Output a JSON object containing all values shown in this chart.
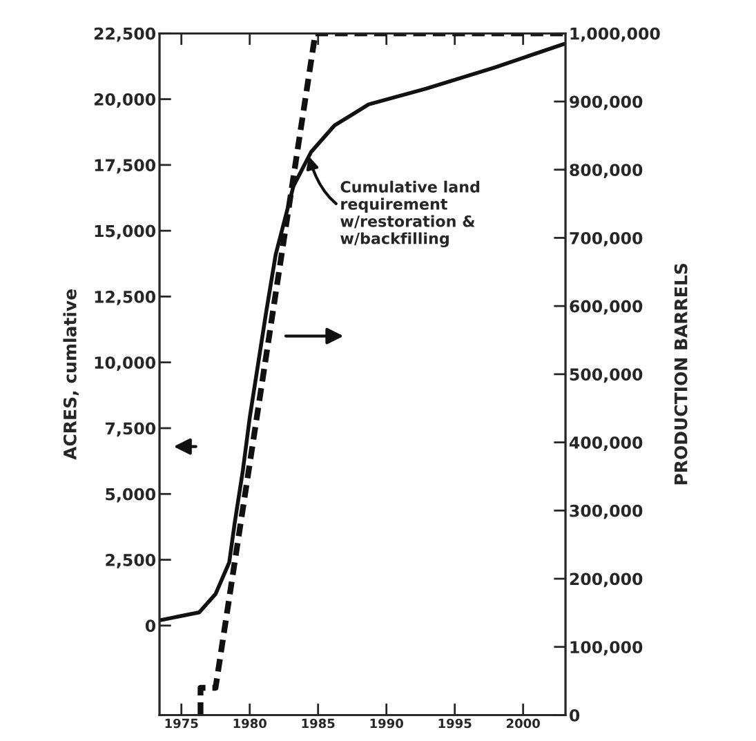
{
  "chart_data": {
    "type": "line",
    "ylabel": "ACRES, cumlative",
    "y2label": "PRODUCTION BARRELS",
    "xlim": [
      1973.4,
      2003.1
    ],
    "xticks": [
      1975,
      1980,
      1985,
      1990,
      1995,
      2000
    ],
    "ylim": [
      -3400,
      22500
    ],
    "yticks": [
      {
        "value": 0,
        "label": "0"
      },
      {
        "value": 2500,
        "label": "2,500"
      },
      {
        "value": 5000,
        "label": "5,000"
      },
      {
        "value": 7500,
        "label": "7,500"
      },
      {
        "value": 10000,
        "label": "10,000"
      },
      {
        "value": 12500,
        "label": "12,500"
      },
      {
        "value": 15000,
        "label": "15,000"
      },
      {
        "value": 17500,
        "label": "17,500"
      },
      {
        "value": 20000,
        "label": "20,000"
      },
      {
        "value": 22500,
        "label": "22,500"
      }
    ],
    "y2lim": [
      0,
      1000000
    ],
    "y2ticks": [
      0,
      {
        "value": 100000,
        "label": "100,000"
      },
      {
        "value": 200000,
        "label": "200,000"
      },
      {
        "value": 300000,
        "label": "300,000"
      },
      {
        "value": 400000,
        "label": "400,000"
      },
      {
        "value": 500000,
        "label": "500,000"
      },
      {
        "value": 600000,
        "label": "600,000"
      },
      {
        "value": 700000,
        "label": "700,000"
      },
      {
        "value": 800000,
        "label": "800,000"
      },
      {
        "value": 900000,
        "label": "900,000"
      },
      {
        "value": 1000000,
        "label": "1,000,000"
      }
    ],
    "series": [
      {
        "color": "#111111",
        "line_style": "solid",
        "x": [
          1973.4,
          1976.3,
          1977.5,
          1978.5,
          1978.9,
          1979.5,
          1980.0,
          1980.6,
          1981.2,
          1981.9,
          1983.2,
          1984.5,
          1986.2,
          1988.7,
          1992.9,
          1997.9,
          2003.0
        ],
        "values": [
          200,
          500,
          1200,
          2400,
          3900,
          5900,
          7900,
          9900,
          11900,
          14100,
          16700,
          18000,
          19000,
          19800,
          20400,
          21200,
          22100
        ]
      },
      {
        "color": "#111111",
        "line_style": "dashed",
        "axis": "y2",
        "x": [
          1976.4,
          1976.4,
          1977.5,
          1984.8,
          2003.1
        ],
        "values": [
          0,
          40000,
          40000,
          1000000,
          1000000
        ]
      }
    ],
    "annotations": [
      {
        "text": "Cumulative land\nrequirement\nw/restoration &\nw/backfilling",
        "x": 1984.3,
        "y": 17900
      }
    ],
    "grid": false,
    "legend": false,
    "marker": "none"
  }
}
